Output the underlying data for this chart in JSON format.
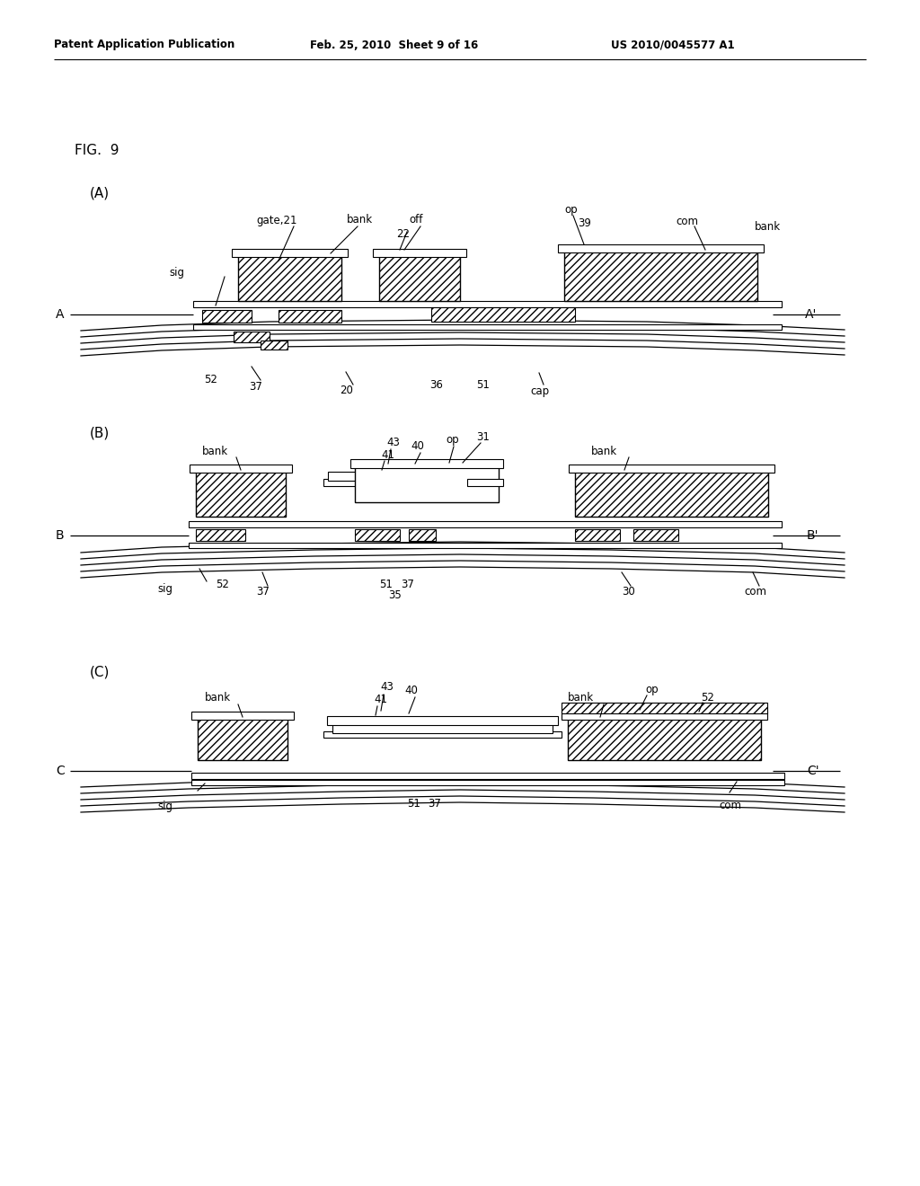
{
  "patent_header_left": "Patent Application Publication",
  "patent_header_center": "Feb. 25, 2010  Sheet 9 of 16",
  "patent_header_right": "US 2010/0045577 A1",
  "fig_label": "FIG.  9",
  "bg_color": "#ffffff"
}
